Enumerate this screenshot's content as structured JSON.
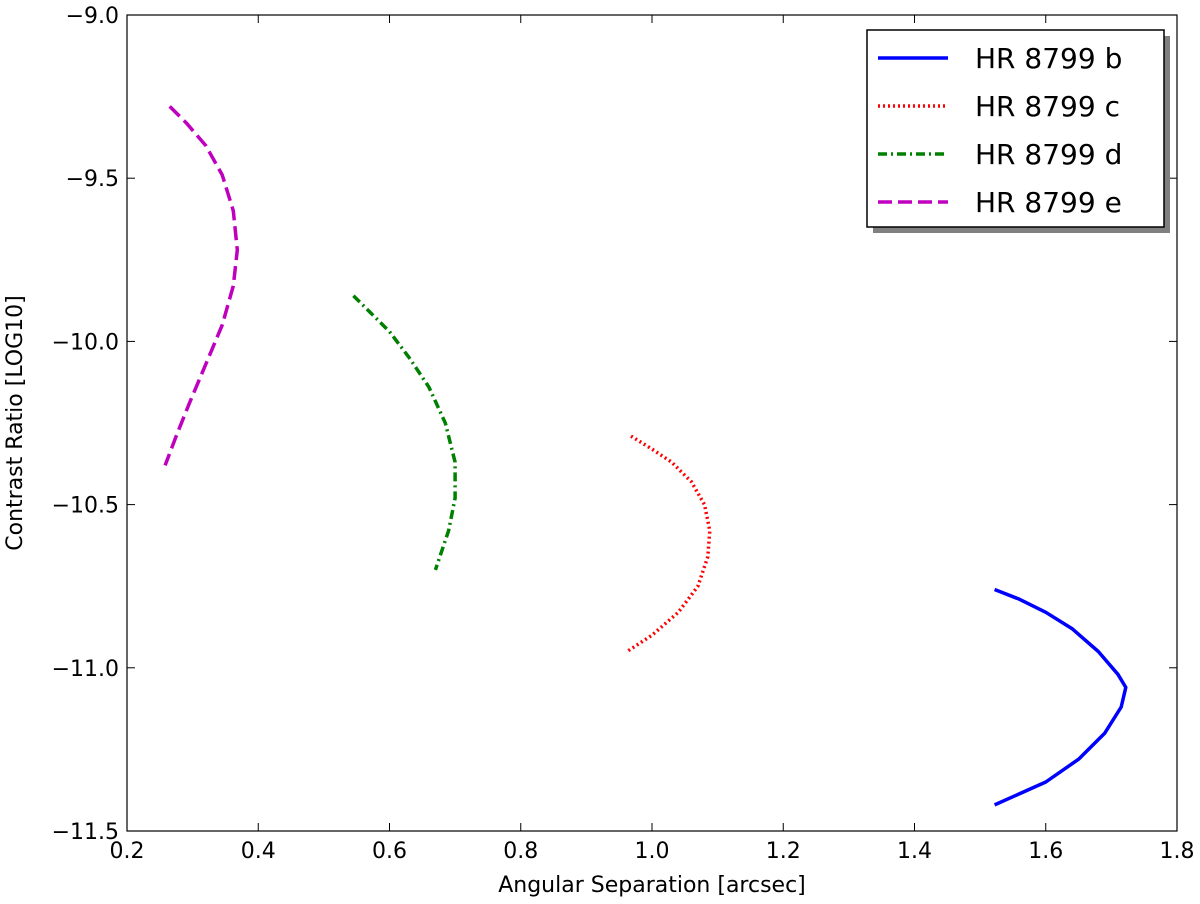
{
  "chart_data": {
    "type": "line",
    "title": "",
    "xlabel": "Angular Separation [arcsec]",
    "ylabel": "Contrast Ratio [LOG10]",
    "xlim": [
      0.2,
      1.8
    ],
    "ylim": [
      -11.5,
      -9.0
    ],
    "xticks": [
      "0.2",
      "0.4",
      "0.6",
      "0.8",
      "1.0",
      "1.2",
      "1.4",
      "1.6",
      "1.8"
    ],
    "yticks": [
      "−9.0",
      "−9.5",
      "−10.0",
      "−10.5",
      "−11.0",
      "−11.5"
    ],
    "grid": false,
    "legend_position": "top-right",
    "series": [
      {
        "name": "HR 8799 b",
        "color": "#0000ff",
        "style": "solid",
        "points": [
          [
            1.522,
            -10.76
          ],
          [
            1.56,
            -10.79
          ],
          [
            1.6,
            -10.83
          ],
          [
            1.64,
            -10.88
          ],
          [
            1.68,
            -10.95
          ],
          [
            1.71,
            -11.02
          ],
          [
            1.722,
            -11.06
          ],
          [
            1.715,
            -11.12
          ],
          [
            1.69,
            -11.2
          ],
          [
            1.65,
            -11.28
          ],
          [
            1.6,
            -11.35
          ],
          [
            1.522,
            -11.42
          ]
        ]
      },
      {
        "name": "HR 8799 c",
        "color": "#ff0000",
        "style": "dotted",
        "points": [
          [
            0.968,
            -10.29
          ],
          [
            1.0,
            -10.33
          ],
          [
            1.03,
            -10.37
          ],
          [
            1.06,
            -10.43
          ],
          [
            1.08,
            -10.5
          ],
          [
            1.088,
            -10.58
          ],
          [
            1.085,
            -10.66
          ],
          [
            1.07,
            -10.75
          ],
          [
            1.04,
            -10.83
          ],
          [
            1.0,
            -10.9
          ],
          [
            0.962,
            -10.95
          ]
        ]
      },
      {
        "name": "HR 8799 d",
        "color": "#008000",
        "style": "dashdot",
        "points": [
          [
            0.545,
            -9.86
          ],
          [
            0.57,
            -9.91
          ],
          [
            0.6,
            -9.97
          ],
          [
            0.63,
            -10.05
          ],
          [
            0.66,
            -10.14
          ],
          [
            0.685,
            -10.25
          ],
          [
            0.7,
            -10.37
          ],
          [
            0.7,
            -10.48
          ],
          [
            0.69,
            -10.58
          ],
          [
            0.67,
            -10.7
          ]
        ]
      },
      {
        "name": "HR 8799 e",
        "color": "#bf00bf",
        "style": "dashed",
        "points": [
          [
            0.265,
            -9.28
          ],
          [
            0.29,
            -9.33
          ],
          [
            0.32,
            -9.4
          ],
          [
            0.345,
            -9.49
          ],
          [
            0.362,
            -9.6
          ],
          [
            0.368,
            -9.72
          ],
          [
            0.362,
            -9.83
          ],
          [
            0.345,
            -9.95
          ],
          [
            0.32,
            -10.07
          ],
          [
            0.295,
            -10.19
          ],
          [
            0.275,
            -10.29
          ],
          [
            0.258,
            -10.38
          ]
        ]
      }
    ]
  }
}
